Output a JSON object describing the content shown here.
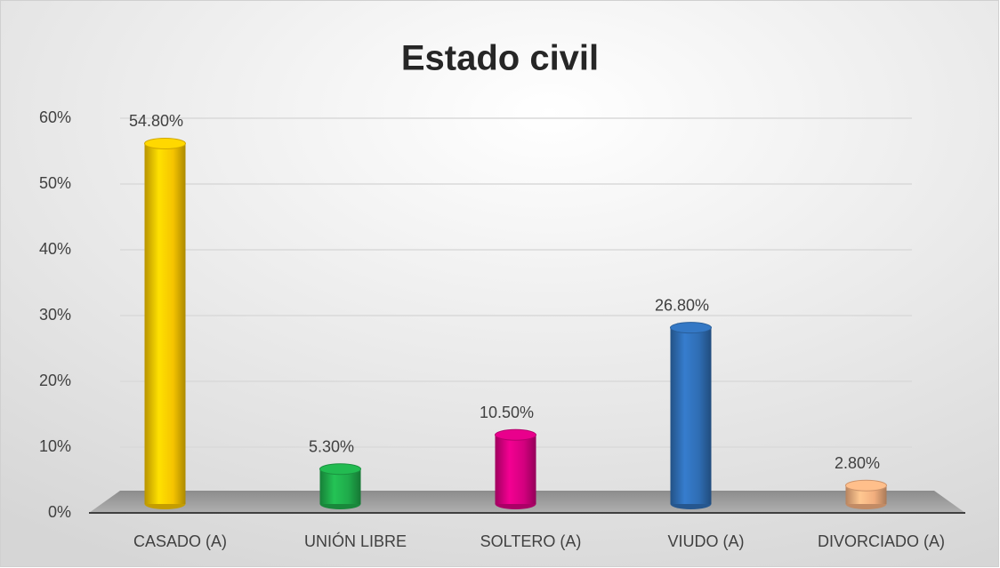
{
  "chart_data": {
    "type": "bar",
    "title": "Estado civil",
    "categories": [
      "CASADO (A)",
      "UNIÓN LIBRE",
      "SOLTERO (A)",
      "VIUDO (A)",
      "DIVORCIADO (A)"
    ],
    "values": [
      54.8,
      5.3,
      10.5,
      26.8,
      2.8
    ],
    "value_labels": [
      "54.80%",
      "5.30%",
      "10.50%",
      "26.80%",
      "2.80%"
    ],
    "colors": [
      "#f5c400",
      "#1faa4a",
      "#d4007f",
      "#2f6db3",
      "#f2ae7e"
    ],
    "ylim": [
      0,
      60
    ],
    "yticks": [
      {
        "value": 0,
        "label": "0%"
      },
      {
        "value": 10,
        "label": "10%"
      },
      {
        "value": 20,
        "label": "20%"
      },
      {
        "value": 30,
        "label": "30%"
      },
      {
        "value": 40,
        "label": "40%"
      },
      {
        "value": 50,
        "label": "50%"
      },
      {
        "value": 60,
        "label": "60%"
      }
    ],
    "grid": true
  }
}
